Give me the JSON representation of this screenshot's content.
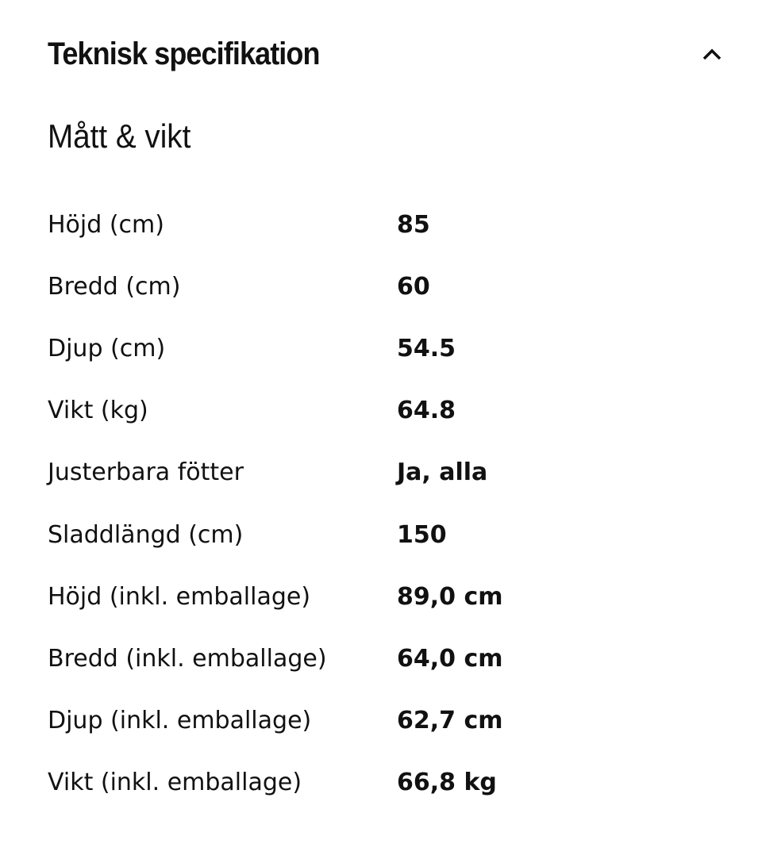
{
  "section": {
    "title": "Teknisk specifikation",
    "expanded": true,
    "toggle_icon": "chevron-up-icon"
  },
  "group": {
    "title": "Mått & vikt"
  },
  "specs": [
    {
      "label": "Höjd (cm)",
      "value": "85"
    },
    {
      "label": "Bredd (cm)",
      "value": "60"
    },
    {
      "label": "Djup (cm)",
      "value": "54.5"
    },
    {
      "label": "Vikt (kg)",
      "value": "64.8"
    },
    {
      "label": "Justerbara fötter",
      "value": "Ja, alla"
    },
    {
      "label": "Sladdlängd (cm)",
      "value": "150"
    },
    {
      "label": "Höjd (inkl. emballage)",
      "value": "89,0 cm"
    },
    {
      "label": "Bredd (inkl. emballage)",
      "value": "64,0 cm"
    },
    {
      "label": "Djup (inkl. emballage)",
      "value": "62,7 cm"
    },
    {
      "label": "Vikt (inkl. emballage)",
      "value": "66,8 kg"
    }
  ]
}
